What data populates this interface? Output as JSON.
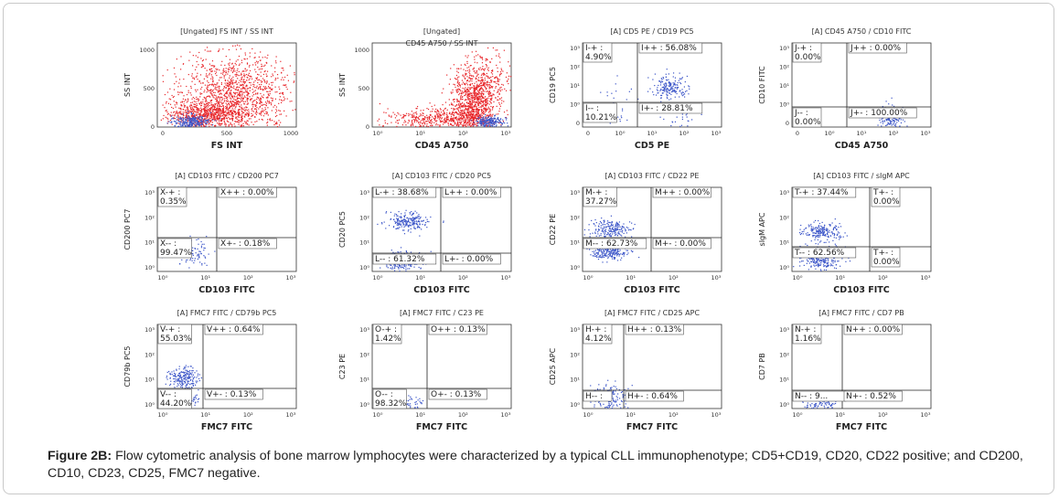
{
  "caption": {
    "label": "Figure 2B:",
    "text": "Flow cytometric analysis of bone marrow lymphocytes were characterized by a typical CLL immunophenotype; CD5+CD19, CD20, CD22 positive; and CD200, CD10, CD23, CD25, FMC7 negative."
  },
  "colors": {
    "red_events": "#e8262a",
    "blue_events": "#3b55c8",
    "gate_line": "#222222",
    "label_box": "#555555"
  },
  "chart_data": [
    {
      "type": "scatter",
      "title": "[Ungated] FS INT / SS INT",
      "xlabel": "FS INT",
      "ylabel": "SS INT",
      "xticks": [
        "0",
        "500",
        "1000"
      ],
      "yticks": [
        "0",
        "500",
        "1000"
      ],
      "scale": "linear",
      "xlim": [
        0,
        1000
      ],
      "ylim": [
        0,
        1000
      ],
      "quadrants": []
    },
    {
      "type": "scatter",
      "title": "[Ungated]",
      "subtitle": "CD45 A750 / SS INT",
      "xlabel": "CD45 A750",
      "ylabel": "SS INT",
      "xticks": [
        "10⁰",
        "10¹",
        "10²",
        "10³"
      ],
      "yticks": [
        "0",
        "500",
        "1000"
      ],
      "scale": "log-x",
      "xlim": [
        0,
        1000
      ],
      "ylim": [
        0,
        1000
      ],
      "quadrants": []
    },
    {
      "type": "scatter",
      "title": "[A] CD5 PE / CD19 PC5",
      "xlabel": "CD5 PE",
      "ylabel": "CD19 PC5",
      "xticks": [
        "0",
        "10⁰",
        "10¹",
        "10²",
        "10³"
      ],
      "yticks": [
        "10³",
        "10²",
        "10¹",
        "10⁰",
        "0"
      ],
      "scale": "log",
      "quadrants": [
        {
          "pos": "ul",
          "label": "I-+ :",
          "value": "4.90%"
        },
        {
          "pos": "ur",
          "label": "I++ : 56.08%",
          "value": ""
        },
        {
          "pos": "ll",
          "label": "I-- :",
          "value": "10.21%"
        },
        {
          "pos": "lr",
          "label": "I+- : 28.81%",
          "value": ""
        }
      ]
    },
    {
      "type": "scatter",
      "title": "[A] CD45 A750 / CD10 FITC",
      "xlabel": "CD45 A750",
      "ylabel": "CD10 FITC",
      "xticks": [
        "0",
        "10⁰",
        "10¹",
        "10²",
        "10³"
      ],
      "yticks": [
        "10³",
        "10²",
        "10¹",
        "10⁰",
        "0"
      ],
      "scale": "log",
      "quadrants": [
        {
          "pos": "ul",
          "label": "J-+ :",
          "value": "0.00%"
        },
        {
          "pos": "ur",
          "label": "J++ : 0.00%",
          "value": ""
        },
        {
          "pos": "ll",
          "label": "J-- :",
          "value": "0.00%"
        },
        {
          "pos": "lr",
          "label": "J+- : 100.00%",
          "value": ""
        }
      ]
    },
    {
      "type": "scatter",
      "title": "[A] CD103 FITC / CD200 PC7",
      "xlabel": "CD103 FITC",
      "ylabel": "CD200 PC7",
      "xticks": [
        "10⁰",
        "10¹",
        "10²",
        "10³"
      ],
      "yticks": [
        "10³",
        "10²",
        "10¹",
        "10⁰"
      ],
      "scale": "log",
      "quadrants": [
        {
          "pos": "ul",
          "label": "X-+ :",
          "value": "0.35%"
        },
        {
          "pos": "ur",
          "label": "X++ : 0.00%",
          "value": ""
        },
        {
          "pos": "ll",
          "label": "X-- :",
          "value": "99.47%"
        },
        {
          "pos": "lr",
          "label": "X+- : 0.18%",
          "value": ""
        }
      ]
    },
    {
      "type": "scatter",
      "title": "[A] CD103 FITC / CD20 PC5",
      "xlabel": "CD103 FITC",
      "ylabel": "CD20 PC5",
      "xticks": [
        "10⁰",
        "10¹",
        "10²",
        "10³"
      ],
      "yticks": [
        "10³",
        "10²",
        "10¹",
        "10⁰"
      ],
      "scale": "log",
      "quadrants": [
        {
          "pos": "ul",
          "label": "L-+ : 38.68%",
          "value": ""
        },
        {
          "pos": "ur",
          "label": "L++ : 0.00%",
          "value": ""
        },
        {
          "pos": "ll",
          "label": "L-- : 61.32%",
          "value": ""
        },
        {
          "pos": "lr",
          "label": "L+- : 0.00%",
          "value": ""
        }
      ]
    },
    {
      "type": "scatter",
      "title": "[A] CD103 FITC / CD22 PE",
      "xlabel": "CD103 FITC",
      "ylabel": "CD22 PE",
      "xticks": [
        "10⁰",
        "10¹",
        "10²",
        "10³"
      ],
      "yticks": [
        "10³",
        "10²",
        "10¹",
        "10⁰"
      ],
      "scale": "log",
      "quadrants": [
        {
          "pos": "ul",
          "label": "M-+ :",
          "value": "37.27%"
        },
        {
          "pos": "ur",
          "label": "M++ : 0.00%",
          "value": ""
        },
        {
          "pos": "ll",
          "label": "M-- : 62.73%",
          "value": ""
        },
        {
          "pos": "lr",
          "label": "M+- : 0.00%",
          "value": ""
        }
      ]
    },
    {
      "type": "scatter",
      "title": "[A] CD103 FITC / sIgM APC",
      "xlabel": "CD103 FITC",
      "ylabel": "sIgM APC",
      "xticks": [
        "10⁰",
        "10¹",
        "10²",
        "10³"
      ],
      "yticks": [
        "10³",
        "10²",
        "10¹",
        "10⁰"
      ],
      "scale": "log",
      "quadrants": [
        {
          "pos": "ul",
          "label": "T-+ : 37.44%",
          "value": ""
        },
        {
          "pos": "ur",
          "label": "T+- :",
          "value": "0.00%"
        },
        {
          "pos": "ll",
          "label": "T-- : 62.56%",
          "value": ""
        },
        {
          "pos": "lr",
          "label": "T+- :",
          "value": "0.00%"
        }
      ]
    },
    {
      "type": "scatter",
      "title": "[A] FMC7 FITC / CD79b PC5",
      "xlabel": "FMC7 FITC",
      "ylabel": "CD79b PC5",
      "xticks": [
        "10⁰",
        "10¹",
        "10²",
        "10³"
      ],
      "yticks": [
        "10³",
        "10²",
        "10¹",
        "10⁰"
      ],
      "scale": "log",
      "quadrants": [
        {
          "pos": "ul",
          "label": "V-+ :",
          "value": "55.03%"
        },
        {
          "pos": "ur",
          "label": "V++ : 0.64%",
          "value": ""
        },
        {
          "pos": "ll",
          "label": "V-- :",
          "value": "44.20%"
        },
        {
          "pos": "lr",
          "label": "V+- : 0.13%",
          "value": ""
        }
      ]
    },
    {
      "type": "scatter",
      "title": "[A] FMC7 FITC / C23 PE",
      "xlabel": "FMC7 FITC",
      "ylabel": "C23 PE",
      "xticks": [
        "10⁰",
        "10¹",
        "10²",
        "10³"
      ],
      "yticks": [
        "10³",
        "10²",
        "10¹",
        "10⁰"
      ],
      "scale": "log",
      "quadrants": [
        {
          "pos": "ul",
          "label": "O-+ :",
          "value": "1.42%"
        },
        {
          "pos": "ur",
          "label": "O++ : 0.13%",
          "value": ""
        },
        {
          "pos": "ll",
          "label": "O-- :",
          "value": "98.32%"
        },
        {
          "pos": "lr",
          "label": "O+- : 0.13%",
          "value": ""
        }
      ]
    },
    {
      "type": "scatter",
      "title": "[A] FMC7 FITC / CD25 APC",
      "xlabel": "FMC7 FITC",
      "ylabel": "CD25 APC",
      "xticks": [
        "10⁰",
        "10¹",
        "10²",
        "10³"
      ],
      "yticks": [
        "10³",
        "10²",
        "10¹",
        "10⁰"
      ],
      "scale": "log",
      "quadrants": [
        {
          "pos": "ul",
          "label": "H-+ :",
          "value": "4.12%"
        },
        {
          "pos": "ur",
          "label": "H++ : 0.13%",
          "value": ""
        },
        {
          "pos": "ll",
          "label": "H-- :",
          "value": ""
        },
        {
          "pos": "lr",
          "label": "H+- : 0.64%",
          "value": ""
        }
      ]
    },
    {
      "type": "scatter",
      "title": "[A] FMC7 FITC / CD7 PB",
      "xlabel": "FMC7 FITC",
      "ylabel": "CD7 PB",
      "xticks": [
        "10⁰",
        "10¹",
        "10²",
        "10³"
      ],
      "yticks": [
        "10³",
        "10²",
        "10¹",
        "10⁰"
      ],
      "scale": "log",
      "quadrants": [
        {
          "pos": "ul",
          "label": "N-+ :",
          "value": "1.16%"
        },
        {
          "pos": "ur",
          "label": "N++ : 0.00%",
          "value": ""
        },
        {
          "pos": "ll",
          "label": "N-- : 9...",
          "value": ""
        },
        {
          "pos": "lr",
          "label": "N+- : 0.52%",
          "value": ""
        }
      ]
    }
  ]
}
